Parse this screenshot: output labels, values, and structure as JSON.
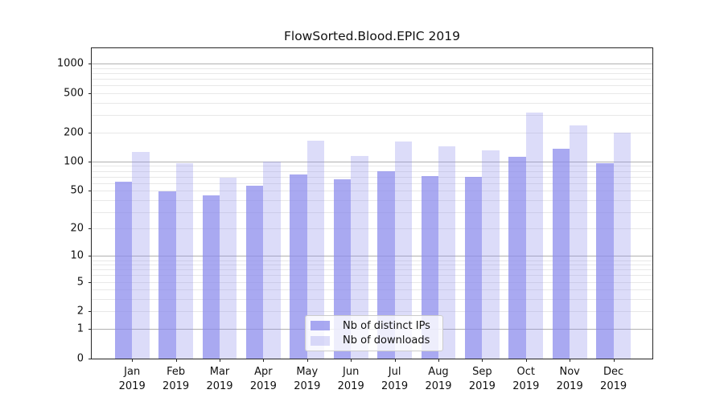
{
  "chart_data": {
    "type": "bar",
    "title": "FlowSorted.Blood.EPIC 2019",
    "x_categories": [
      "Jan 2019",
      "Feb 2019",
      "Mar 2019",
      "Apr 2019",
      "May 2019",
      "Jun 2019",
      "Jul 2019",
      "Aug 2019",
      "Sep 2019",
      "Oct 2019",
      "Nov 2019",
      "Dec 2019"
    ],
    "x_tick_months": [
      "Jan",
      "Feb",
      "Mar",
      "Apr",
      "May",
      "Jun",
      "Jul",
      "Aug",
      "Sep",
      "Oct",
      "Nov",
      "Dec"
    ],
    "x_tick_year": "2019",
    "series": [
      {
        "name": "Nb of distinct IPs",
        "color": "#8b8bec",
        "alpha": 0.74,
        "values": [
          63,
          50,
          45,
          57,
          75,
          66,
          80,
          71,
          70,
          113,
          137,
          98
        ]
      },
      {
        "name": "Nb of downloads",
        "color": "#8b8bec",
        "alpha": 0.3,
        "values": [
          126,
          97,
          69,
          101,
          166,
          115,
          161,
          145,
          133,
          320,
          239,
          199
        ]
      }
    ],
    "y_scale": "log10(1+x)",
    "y_ticks": [
      0,
      1,
      2,
      5,
      10,
      20,
      50,
      100,
      200,
      500,
      1000
    ],
    "y_range": [
      0,
      1445
    ],
    "grid": {
      "major": [
        1,
        10,
        100,
        1000
      ],
      "minor": [
        2,
        3,
        4,
        5,
        6,
        7,
        8,
        9,
        20,
        30,
        40,
        50,
        60,
        70,
        80,
        90,
        200,
        300,
        400,
        500,
        600,
        700,
        800,
        900
      ]
    },
    "legend_position": "inside-bottom-center"
  },
  "colors": {
    "bar_dark_rendered": "#a9a9f1",
    "bar_light_rendered": "#dcdcf8",
    "major_grid": "#b0b0b0",
    "minor_grid": "#e8e8e8",
    "axis": "#262626",
    "legend_border": "#cccccc",
    "legend_background": "rgba(255,255,255,0.8)",
    "text": "#111111",
    "background": "#ffffff"
  }
}
